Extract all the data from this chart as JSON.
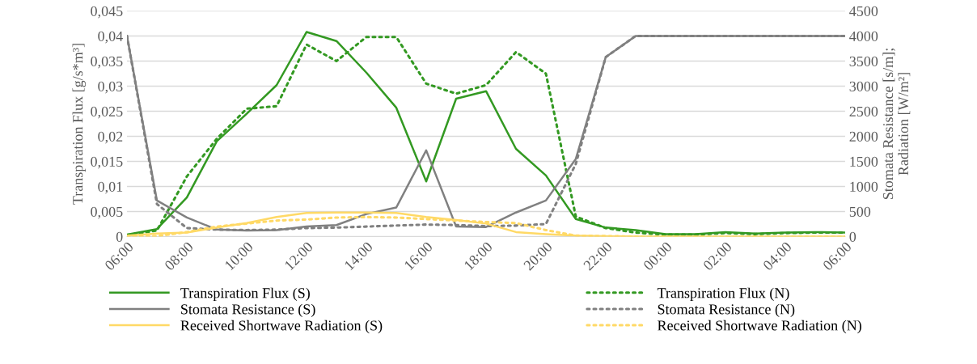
{
  "chart_data": {
    "type": "line",
    "ylabel": "Transpiration Flux [g/s*m³]",
    "y2label": "Stomata Resistance [s/m];\nRadiation [W/m²]",
    "x": [
      "2000-01-01T06:00",
      "2000-01-01T07:00",
      "2000-01-01T08:00",
      "2000-01-01T09:00",
      "2000-01-01T10:00",
      "2000-01-01T11:00",
      "2000-01-01T12:00",
      "2000-01-01T13:00",
      "2000-01-01T14:00",
      "2000-01-01T15:00",
      "2000-01-01T16:00",
      "2000-01-01T17:00",
      "2000-01-01T18:00",
      "2000-01-01T19:00",
      "2000-01-01T20:00",
      "2000-01-01T21:00",
      "2000-01-01T22:00",
      "2000-01-01T23:00",
      "2000-01-02T00:00",
      "2000-01-02T01:00",
      "2000-01-02T02:00",
      "2000-01-02T03:00",
      "2000-01-02T04:00",
      "2000-01-02T05:00",
      "2000-01-02T06:00"
    ],
    "xlim": [
      "2000-01-01T06:00",
      "2000-01-02T06:00"
    ],
    "xticks": [
      {
        "value": "2000-01-01T06:00",
        "label": "06:00"
      },
      {
        "value": "2000-01-01T08:00",
        "label": "08:00"
      },
      {
        "value": "2000-01-01T10:00",
        "label": "10:00"
      },
      {
        "value": "2000-01-01T12:00",
        "label": "12:00"
      },
      {
        "value": "2000-01-01T14:00",
        "label": "14:00"
      },
      {
        "value": "2000-01-01T16:00",
        "label": "16:00"
      },
      {
        "value": "2000-01-01T18:00",
        "label": "18:00"
      },
      {
        "value": "2000-01-01T20:00",
        "label": "20:00"
      },
      {
        "value": "2000-01-01T22:00",
        "label": "22:00"
      },
      {
        "value": "2000-01-02T00:00",
        "label": "00:00"
      },
      {
        "value": "2000-01-02T02:00",
        "label": "02:00"
      },
      {
        "value": "2000-01-02T04:00",
        "label": "04:00"
      },
      {
        "value": "2000-01-02T06:00",
        "label": "06:00"
      }
    ],
    "ylim": [
      0,
      0.045
    ],
    "yticks": [
      0,
      {
        "value": 0.005,
        "label": "0,005"
      },
      {
        "value": 0.01,
        "label": "0,01"
      },
      {
        "value": 0.015,
        "label": "0,015"
      },
      {
        "value": 0.02,
        "label": "0,02"
      },
      {
        "value": 0.025,
        "label": "0,025"
      },
      {
        "value": 0.03,
        "label": "0,03"
      },
      {
        "value": 0.035,
        "label": "0,035"
      },
      {
        "value": 0.04,
        "label": "0,04"
      },
      {
        "value": 0.045,
        "label": "0,045"
      }
    ],
    "y2lim": [
      0,
      4500
    ],
    "y2ticks": [
      0,
      500,
      1000,
      1500,
      2000,
      2500,
      3000,
      3500,
      4000,
      4500
    ],
    "grid": "y",
    "legend": "bottom",
    "marker": "none",
    "series": [
      {
        "name": "Transpiration Flux (S)",
        "color": "#339922",
        "line_style": "solid",
        "values": [
          0.0004,
          0.0015,
          0.0078,
          0.019,
          0.0245,
          0.0302,
          0.0408,
          0.039,
          0.0327,
          0.0257,
          0.011,
          0.0275,
          0.029,
          0.0175,
          0.0122,
          0.0035,
          0.0018,
          0.0013,
          0.0005,
          0.0005,
          0.0009,
          0.0006,
          0.0008,
          0.0009,
          0.0008
        ]
      },
      {
        "name": "Transpiration Flux (N)",
        "color": "#339922",
        "line_style": "dotted",
        "values": [
          0.0003,
          0.0012,
          0.012,
          0.0195,
          0.0255,
          0.026,
          0.0383,
          0.035,
          0.0398,
          0.0398,
          0.0305,
          0.0285,
          0.0302,
          0.0368,
          0.0325,
          0.004,
          0.0017,
          0.0008,
          0.0004,
          0.0004,
          0.0007,
          0.0005,
          0.0007,
          0.0008,
          0.0008
        ]
      },
      {
        "name": "Stomata Resistance (S)",
        "color": "#808080",
        "line_style": "solid",
        "axis": "y2",
        "values": [
          4000,
          720,
          380,
          140,
          120,
          130,
          200,
          230,
          450,
          580,
          1720,
          200,
          190,
          480,
          720,
          1550,
          3580,
          4000,
          4000,
          4000,
          4000,
          4000,
          4000,
          4000,
          4000
        ]
      },
      {
        "name": "Stomata Resistance (N)",
        "color": "#808080",
        "line_style": "dotted",
        "axis": "y2",
        "values": [
          4000,
          650,
          170,
          140,
          130,
          140,
          170,
          180,
          200,
          220,
          240,
          230,
          210,
          220,
          250,
          1450,
          3580,
          4000,
          4000,
          4000,
          4000,
          4000,
          4000,
          4000,
          4000
        ]
      },
      {
        "name": "Received Shortwave Radiation (S)",
        "color": "#ffd966",
        "line_style": "solid",
        "axis": "y2",
        "values": [
          20,
          60,
          80,
          180,
          270,
          390,
          470,
          480,
          480,
          470,
          390,
          330,
          260,
          90,
          50,
          20,
          10,
          0,
          0,
          0,
          0,
          0,
          0,
          0,
          0
        ]
      },
      {
        "name": "Received Shortwave Radiation (N)",
        "color": "#ffd966",
        "line_style": "dotted",
        "axis": "y2",
        "values": [
          0,
          10,
          90,
          200,
          260,
          320,
          340,
          380,
          390,
          380,
          350,
          320,
          290,
          270,
          130,
          20,
          10,
          0,
          0,
          0,
          0,
          0,
          0,
          0,
          0
        ]
      }
    ]
  }
}
